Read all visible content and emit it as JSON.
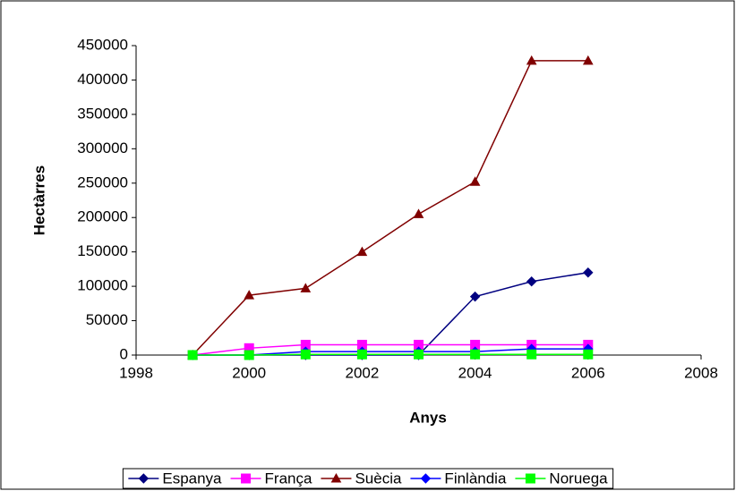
{
  "chart_data": {
    "type": "line",
    "x_label": "Anys",
    "y_label": "Hectàrres",
    "x": [
      1999,
      2000,
      2001,
      2002,
      2003,
      2004,
      2005,
      2006
    ],
    "series": [
      {
        "name": "Espanya",
        "color": "#000080",
        "marker": "diamond",
        "values": [
          0,
          0,
          0,
          0,
          0,
          85000,
          107000,
          120000
        ]
      },
      {
        "name": "França",
        "color": "#ff00ff",
        "marker": "square",
        "values": [
          0,
          10000,
          15000,
          15000,
          15000,
          15000,
          15000,
          15000
        ]
      },
      {
        "name": "Suècia",
        "color": "#800000",
        "marker": "triangle",
        "values": [
          0,
          87000,
          97000,
          150000,
          205000,
          252000,
          428000,
          428000
        ]
      },
      {
        "name": "Finlàndia",
        "color": "#0000ff",
        "marker": "diamond",
        "values": [
          0,
          0,
          5000,
          5000,
          5000,
          5000,
          9000,
          9000
        ]
      },
      {
        "name": "Noruega",
        "color": "#00ff00",
        "marker": "square",
        "values": [
          0,
          0,
          1000,
          1000,
          1000,
          1000,
          1000,
          1000
        ]
      }
    ],
    "xlim": [
      1998,
      2008
    ],
    "xticks": [
      1998,
      2000,
      2002,
      2004,
      2006,
      2008
    ],
    "ylim": [
      0,
      450000
    ],
    "yticks": [
      0,
      50000,
      100000,
      150000,
      200000,
      250000,
      300000,
      350000,
      400000,
      450000
    ],
    "legend": "bottom",
    "grid": false
  }
}
